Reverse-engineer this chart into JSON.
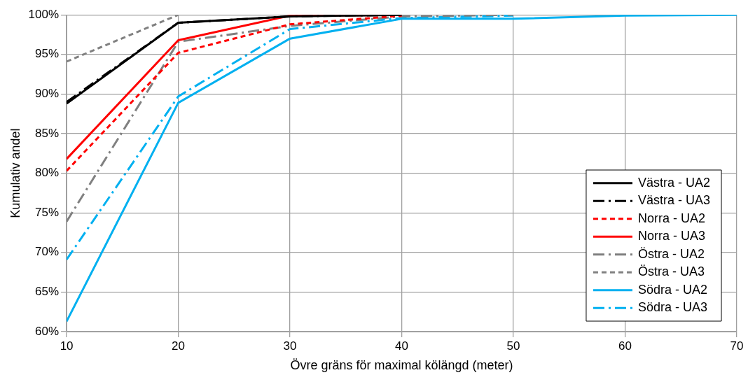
{
  "chart_data": {
    "type": "line",
    "xlabel": "Övre gräns för maximal kölängd (meter)",
    "ylabel": "Kumulativ andel",
    "x": [
      10,
      20,
      30,
      40,
      50,
      60,
      70
    ],
    "xlim": [
      10,
      70
    ],
    "xticks": [
      10,
      20,
      30,
      40,
      50,
      60,
      70
    ],
    "ylim": [
      60,
      100
    ],
    "yticks": [
      {
        "value": 60,
        "label": "60%"
      },
      {
        "value": 65,
        "label": "65%"
      },
      {
        "value": 70,
        "label": "70%"
      },
      {
        "value": 75,
        "label": "75%"
      },
      {
        "value": 80,
        "label": "80%"
      },
      {
        "value": 85,
        "label": "85%"
      },
      {
        "value": 90,
        "label": "90%"
      },
      {
        "value": 95,
        "label": "95%"
      },
      {
        "value": 100,
        "label": "100%"
      }
    ],
    "grid": true,
    "legend": "bottom right",
    "marker": "none",
    "series": [
      {
        "name": "Västra - UA2",
        "color": "#000000",
        "line_style": "solid",
        "values": [
          88.8,
          99.0,
          99.8,
          100,
          null,
          null,
          null
        ]
      },
      {
        "name": "Västra - UA3",
        "color": "#000000",
        "line_style": "dashdot",
        "values": [
          89.0,
          99.0,
          99.8,
          100,
          null,
          null,
          null
        ]
      },
      {
        "name": "Norra - UA2",
        "color": "#ff0000",
        "line_style": "dashed",
        "values": [
          80.3,
          95.2,
          98.8,
          99.9,
          null,
          null,
          null
        ]
      },
      {
        "name": "Norra - UA3",
        "color": "#ff0000",
        "line_style": "solid",
        "values": [
          81.8,
          96.8,
          99.9,
          100,
          null,
          null,
          null
        ]
      },
      {
        "name": "Östra - UA2",
        "color": "#808080",
        "line_style": "dashdot",
        "values": [
          73.9,
          96.6,
          98.6,
          99.8,
          100,
          null,
          null
        ]
      },
      {
        "name": "Östra - UA3",
        "color": "#808080",
        "line_style": "dashed",
        "values": [
          94.1,
          100,
          null,
          null,
          null,
          null,
          null
        ]
      },
      {
        "name": "Södra - UA2",
        "color": "#00b0f0",
        "line_style": "solid",
        "values": [
          61.3,
          88.9,
          97.0,
          99.5,
          99.5,
          99.9,
          100
        ]
      },
      {
        "name": "Södra - UA3",
        "color": "#00b0f0",
        "line_style": "dashdot",
        "values": [
          69.1,
          89.7,
          98.2,
          99.6,
          99.9,
          null,
          null
        ]
      }
    ]
  }
}
